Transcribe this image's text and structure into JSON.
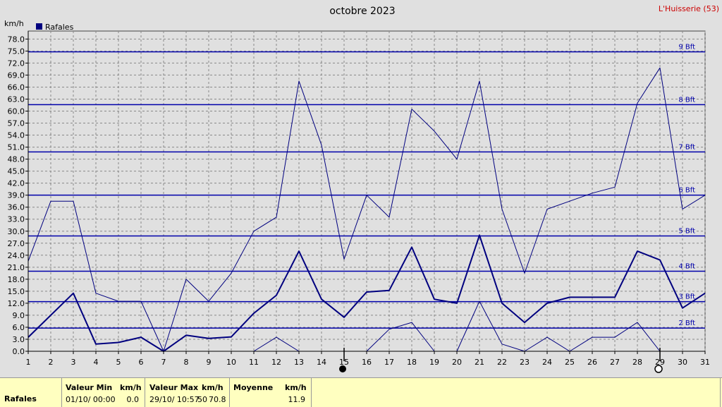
{
  "header": {
    "title": "octobre 2023",
    "station": "L'Huisserie (53)",
    "unit": "km/h"
  },
  "legend": {
    "label": "Rafales",
    "color": "#00007f"
  },
  "chart_data": {
    "type": "line",
    "title": "octobre 2023",
    "ylabel": "km/h",
    "ylim": [
      0,
      80
    ],
    "yticks": [
      "0.0",
      "3.0",
      "6.0",
      "9.0",
      "12.0",
      "15.0",
      "18.0",
      "21.0",
      "24.0",
      "27.0",
      "30.0",
      "33.0",
      "36.0",
      "39.0",
      "42.0",
      "45.0",
      "48.0",
      "51.0",
      "54.0",
      "57.0",
      "60.0",
      "63.0",
      "66.0",
      "69.0",
      "72.0",
      "75.0",
      "78.0"
    ],
    "x": [
      1,
      2,
      3,
      4,
      5,
      6,
      7,
      8,
      9,
      10,
      11,
      12,
      13,
      14,
      15,
      16,
      17,
      18,
      19,
      20,
      21,
      22,
      23,
      24,
      25,
      26,
      27,
      28,
      29,
      30,
      31
    ],
    "grid": true,
    "series": [
      {
        "name": "Rafales",
        "role": "max",
        "width": 1,
        "values": [
          22.5,
          37.5,
          37.5,
          14.5,
          12.5,
          12.5,
          0.0,
          18.0,
          12.5,
          19.5,
          30.0,
          33.5,
          67.5,
          51.5,
          23.0,
          39.0,
          33.5,
          60.5,
          55.0,
          48.0,
          67.5,
          35.5,
          19.5,
          35.5,
          37.5,
          39.5,
          41.0,
          62.0,
          70.8,
          35.5,
          39.0
        ]
      },
      {
        "name": "Rafales",
        "role": "mean",
        "width": 2,
        "values": [
          3.5,
          9.0,
          14.5,
          1.8,
          2.2,
          3.5,
          0.0,
          4.0,
          3.2,
          3.6,
          9.5,
          14.0,
          25.0,
          13.0,
          8.5,
          14.8,
          15.2,
          26.0,
          13.0,
          12.0,
          29.0,
          12.0,
          7.2,
          12.0,
          13.5,
          13.5,
          13.5,
          25.0,
          22.8,
          10.8,
          14.5
        ]
      },
      {
        "name": "Rafales",
        "role": "min",
        "width": 1,
        "values": [
          null,
          null,
          null,
          null,
          null,
          null,
          null,
          null,
          null,
          null,
          0.0,
          3.5,
          0.0,
          null,
          null,
          0.0,
          5.5,
          7.2,
          0.0,
          0.0,
          12.5,
          1.8,
          0.0,
          3.5,
          0.0,
          3.5,
          3.5,
          7.2,
          0.0,
          null,
          null
        ]
      }
    ],
    "beaufort": [
      {
        "label": "2 Bft",
        "value": 5.8
      },
      {
        "label": "3 Bft",
        "value": 12.4
      },
      {
        "label": "4 Bft",
        "value": 20.0
      },
      {
        "label": "5 Bft",
        "value": 28.8
      },
      {
        "label": "6 Bft",
        "value": 39.0
      },
      {
        "label": "7 Bft",
        "value": 49.8
      },
      {
        "label": "8 Bft",
        "value": 61.6
      },
      {
        "label": "9 Bft",
        "value": 74.8
      }
    ],
    "moon": [
      {
        "day": 15,
        "phase": "new"
      },
      {
        "day": 29,
        "phase": "full"
      }
    ]
  },
  "stats": {
    "row_label": "Rafales",
    "min_header": "Valeur Min",
    "min_unit": "km/h",
    "min_date": "01/10/  00:00",
    "min_value": "0.0",
    "max_header": "Valeur Max",
    "max_unit": "km/h",
    "max_date": "29/10/  10:57",
    "max_value": "70.8",
    "max_hidden_value": "50",
    "mean_header": "Moyenne",
    "mean_unit": "km/h",
    "mean_value": "11.9"
  }
}
